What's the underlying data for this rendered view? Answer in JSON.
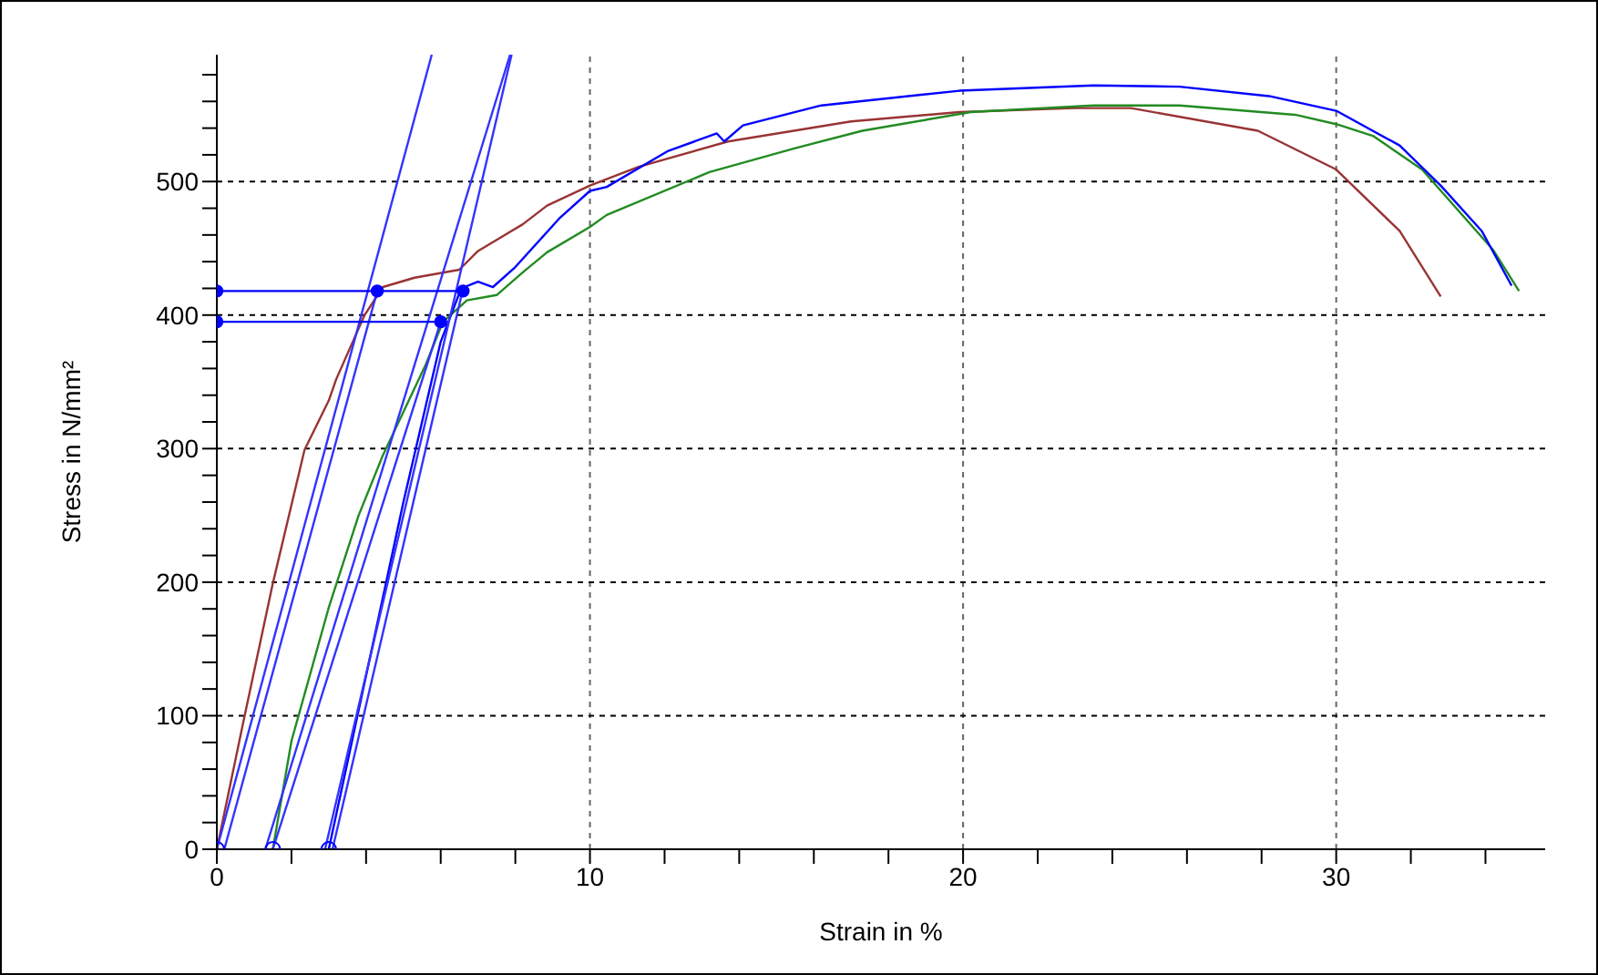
{
  "chart_data": {
    "type": "line",
    "xlabel": "Strain in %",
    "ylabel": "Stress in N/mm²",
    "xlim": [
      0,
      35.6
    ],
    "ylim": [
      0,
      595
    ],
    "xticks": [
      0,
      {
        "value": 2,
        "label": null
      },
      {
        "value": 4,
        "label": null
      },
      {
        "value": 6,
        "label": null
      },
      {
        "value": 8,
        "label": null
      },
      10,
      {
        "value": 12,
        "label": null
      },
      {
        "value": 14,
        "label": null
      },
      {
        "value": 16,
        "label": null
      },
      {
        "value": 18,
        "label": null
      },
      20,
      {
        "value": 22,
        "label": null
      },
      {
        "value": 24,
        "label": null
      },
      {
        "value": 26,
        "label": null
      },
      {
        "value": 28,
        "label": null
      },
      30,
      {
        "value": 32,
        "label": null
      },
      {
        "value": 34,
        "label": null
      }
    ],
    "yticks": [
      0,
      {
        "value": 20,
        "label": null
      },
      {
        "value": 40,
        "label": null
      },
      {
        "value": 60,
        "label": null
      },
      {
        "value": 80,
        "label": null
      },
      100,
      {
        "value": 120,
        "label": null
      },
      {
        "value": 140,
        "label": null
      },
      {
        "value": 160,
        "label": null
      },
      {
        "value": 180,
        "label": null
      },
      200,
      {
        "value": 220,
        "label": null
      },
      {
        "value": 240,
        "label": null
      },
      {
        "value": 260,
        "label": null
      },
      {
        "value": 280,
        "label": null
      },
      300,
      {
        "value": 320,
        "label": null
      },
      {
        "value": 340,
        "label": null
      },
      {
        "value": 360,
        "label": null
      },
      {
        "value": 380,
        "label": null
      },
      400,
      {
        "value": 420,
        "label": null
      },
      {
        "value": 440,
        "label": null
      },
      {
        "value": 460,
        "label": null
      },
      {
        "value": 480,
        "label": null
      },
      500,
      {
        "value": 520,
        "label": null
      },
      {
        "value": 540,
        "label": null
      },
      {
        "value": 560,
        "label": null
      },
      {
        "value": 580,
        "label": null
      }
    ],
    "grid": true,
    "line_style": "solid",
    "series": [
      {
        "color": "#993333",
        "marker": "none",
        "x": [
          0,
          0.7,
          1.5,
          2.35,
          3.0,
          3.2,
          3.96,
          4.45,
          5.3,
          6.5,
          7.0,
          8.2,
          8.85,
          10.0,
          11.3,
          13.7,
          17.0,
          19.9,
          23.0,
          24.5,
          27.9,
          30.0,
          31.7,
          32.8
        ],
        "values": [
          0,
          94,
          199,
          299,
          336,
          352,
          400,
          421,
          428,
          434,
          448,
          468,
          482,
          497,
          511,
          530,
          545,
          552,
          555,
          555,
          538,
          509,
          463,
          414
        ]
      },
      {
        "color": "#228b22",
        "marker": "none",
        "x": [
          1.5,
          2.0,
          3.0,
          3.8,
          4.45,
          5.6,
          6.06,
          6.7,
          7.5,
          8.2,
          8.85,
          10.0,
          10.45,
          13.2,
          15.5,
          17.3,
          20.2,
          23.5,
          25.8,
          28.9,
          30.0,
          31.0,
          32.3,
          33.3,
          34.2,
          34.9
        ],
        "values": [
          0,
          81,
          181,
          250,
          295,
          363,
          395,
          411,
          415,
          432,
          447,
          466,
          475,
          507,
          525,
          538,
          552,
          557,
          557,
          550,
          543,
          534,
          509,
          null,
          449,
          418
        ]
      },
      {
        "color": "#0000ff",
        "marker": "none",
        "x": [
          3.0,
          4.0,
          5.0,
          6.0,
          6.55,
          7.0,
          7.4,
          8.0,
          9.2,
          10.0,
          10.45,
          12.1,
          13.4,
          13.6,
          14.1,
          16.2,
          19.9,
          23.5,
          25.8,
          28.2,
          30.0,
          31.7,
          32.8,
          33.9,
          34.7
        ],
        "values": [
          0,
          130,
          260,
          380,
          420,
          425,
          421,
          436,
          473,
          493,
          496,
          523,
          536,
          530,
          542,
          557,
          568,
          572,
          571,
          564,
          553,
          527,
          497,
          463,
          422
        ]
      },
      {
        "color": "#3333ff",
        "marker": "none",
        "x": [
          0,
          5.76
        ],
        "values": [
          0,
          595
        ]
      },
      {
        "color": "#3333ff",
        "marker": "none",
        "x": [
          0.2,
          4.3
        ],
        "values": [
          0,
          418
        ]
      },
      {
        "color": "#3333ff",
        "marker": "none",
        "x": [
          1.3,
          7.86
        ],
        "values": [
          0,
          595
        ]
      },
      {
        "color": "#3333ff",
        "marker": "none",
        "x": [
          1.5,
          6.0
        ],
        "values": [
          0,
          395
        ]
      },
      {
        "color": "#3333ff",
        "marker": "none",
        "x": [
          2.9,
          7.9
        ],
        "values": [
          0,
          595
        ]
      },
      {
        "color": "#3333ff",
        "marker": "none",
        "x": [
          3.1,
          6.6
        ],
        "values": [
          0,
          420
        ]
      },
      {
        "color": "#0000ff",
        "marker": "circle",
        "x": [
          0,
          4.3,
          6.6
        ],
        "values": [
          418,
          418,
          418
        ]
      },
      {
        "color": "#0000ff",
        "marker": "circle",
        "x": [
          0,
          6.0
        ],
        "values": [
          395,
          395
        ]
      },
      {
        "type": "scatter",
        "color": "#0000ff",
        "marker": "circle",
        "x": [
          0,
          1.5,
          3.0
        ],
        "values": [
          0,
          0,
          0
        ]
      }
    ]
  }
}
